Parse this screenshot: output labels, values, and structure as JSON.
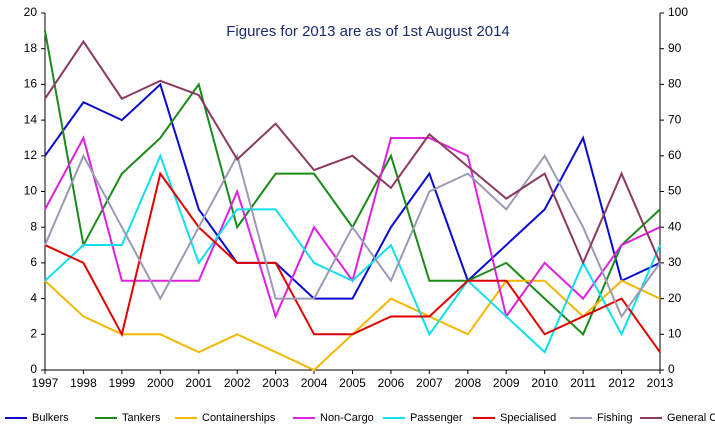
{
  "chart_data": {
    "type": "line",
    "annotation": "Figures for 2013 are as of 1st August 2014",
    "categories": [
      "1997",
      "1998",
      "1999",
      "2000",
      "2001",
      "2002",
      "2003",
      "2004",
      "2005",
      "2006",
      "2007",
      "2008",
      "2009",
      "2010",
      "2011",
      "2012",
      "2013"
    ],
    "ylim": [
      0,
      20
    ],
    "yticks": [
      0,
      2,
      4,
      6,
      8,
      10,
      12,
      14,
      16,
      18,
      20
    ],
    "y2lim": [
      0,
      100
    ],
    "y2ticks": [
      0,
      10,
      20,
      30,
      40,
      50,
      60,
      70,
      80,
      90,
      100
    ],
    "grid": false,
    "legend": "bottom",
    "series": [
      {
        "name": "Bulkers",
        "color": "#0a0ad0",
        "values": [
          12,
          15,
          14,
          16,
          9,
          6,
          6,
          4,
          4,
          8,
          11,
          5,
          7,
          9,
          13,
          5,
          6
        ]
      },
      {
        "name": "Tankers",
        "color": "#1a8a1a",
        "values": [
          19,
          7,
          11,
          13,
          16,
          8,
          11,
          11,
          8,
          12,
          5,
          5,
          6,
          4,
          2,
          7,
          9
        ]
      },
      {
        "name": "Containerships",
        "color": "#f5b800",
        "values": [
          5,
          3,
          2,
          2,
          1,
          2,
          1,
          0,
          2,
          4,
          3,
          2,
          5,
          5,
          3,
          5,
          4
        ]
      },
      {
        "name": "Non-Cargo",
        "color": "#e020e0",
        "values": [
          9,
          13,
          5,
          5,
          5,
          10,
          3,
          8,
          5,
          13,
          13,
          12,
          3,
          6,
          4,
          7,
          8
        ]
      },
      {
        "name": "Passenger",
        "color": "#10e0ee",
        "values": [
          5,
          7,
          7,
          12,
          6,
          9,
          9,
          6,
          5,
          7,
          2,
          5,
          3,
          1,
          6,
          2,
          7
        ]
      },
      {
        "name": "Specialised",
        "color": "#e00000",
        "values": [
          7,
          6,
          2,
          11,
          8,
          6,
          6,
          2,
          2,
          3,
          3,
          5,
          5,
          2,
          3,
          4,
          1
        ]
      },
      {
        "name": "Fishing",
        "color": "#9a9ab4",
        "values": [
          7,
          12,
          8,
          4,
          8,
          12,
          4,
          4,
          8,
          5,
          10,
          11,
          9,
          12,
          8,
          3,
          6
        ]
      },
      {
        "name": "General Cargo",
        "color": "#8b3a62",
        "axis": "y2",
        "values": [
          76,
          92,
          76,
          81,
          77,
          59,
          69,
          56,
          60,
          51,
          66,
          57,
          48,
          55,
          30,
          55,
          30
        ]
      }
    ]
  }
}
